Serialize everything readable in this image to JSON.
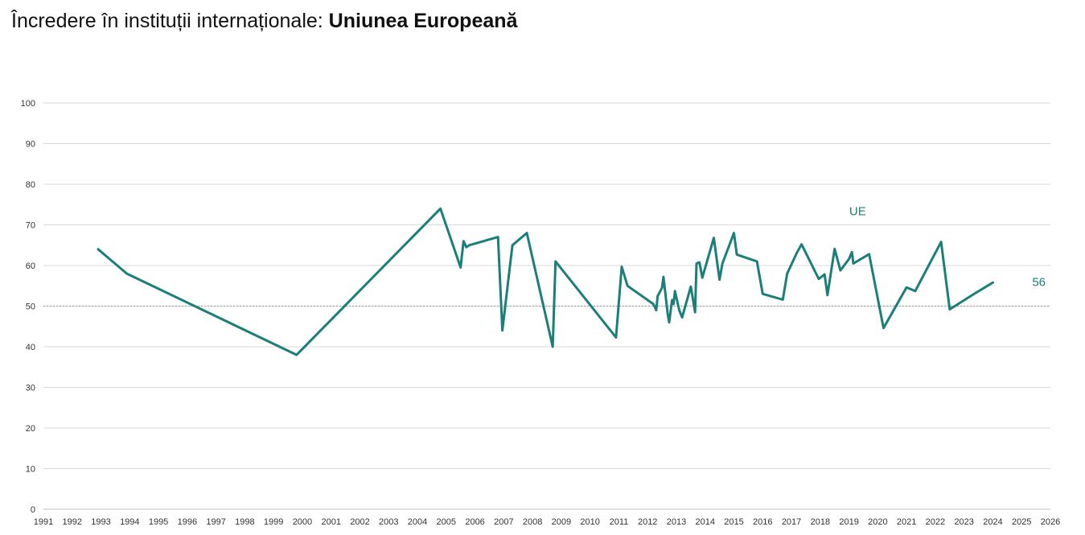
{
  "title_prefix": "Încredere în instituții internaționale: ",
  "title_bold": "Uniunea Europeană",
  "chart_data": {
    "type": "line",
    "title": "Încredere în instituții internaționale: Uniunea Europeană",
    "xlabel": "",
    "ylabel": "",
    "xlim": [
      1991,
      2026
    ],
    "ylim": [
      0,
      100
    ],
    "x_ticks": [
      1991,
      1992,
      1993,
      1994,
      1995,
      1996,
      1997,
      1998,
      1999,
      2000,
      2001,
      2002,
      2003,
      2004,
      2005,
      2006,
      2007,
      2008,
      2009,
      2010,
      2011,
      2012,
      2013,
      2014,
      2015,
      2016,
      2017,
      2018,
      2019,
      2020,
      2021,
      2022,
      2023,
      2024,
      2025,
      2026
    ],
    "y_ticks": [
      0,
      10,
      20,
      30,
      40,
      50,
      60,
      70,
      80,
      90,
      100
    ],
    "grid": true,
    "reference_line": 50,
    "line_color": "#1b7f79",
    "series": [
      {
        "name": "UE",
        "end_label": "56",
        "points": [
          [
            1992.9,
            64
          ],
          [
            1993.9,
            58
          ],
          [
            1999.8,
            38
          ],
          [
            2004.8,
            74
          ],
          [
            2005.5,
            59.5
          ],
          [
            2005.6,
            66
          ],
          [
            2005.7,
            64.5
          ],
          [
            2005.8,
            65
          ],
          [
            2006.8,
            67
          ],
          [
            2006.95,
            44
          ],
          [
            2007.3,
            65
          ],
          [
            2007.8,
            68
          ],
          [
            2008.7,
            40
          ],
          [
            2008.8,
            61
          ],
          [
            2010.9,
            42.3
          ],
          [
            2011.1,
            59.7
          ],
          [
            2011.3,
            55
          ],
          [
            2012.2,
            50.5
          ],
          [
            2012.3,
            49
          ],
          [
            2012.35,
            52.5
          ],
          [
            2012.5,
            54.5
          ],
          [
            2012.55,
            57.2
          ],
          [
            2012.7,
            48
          ],
          [
            2012.75,
            46
          ],
          [
            2012.85,
            51.5
          ],
          [
            2012.9,
            50.5
          ],
          [
            2012.95,
            53.7
          ],
          [
            2013.1,
            49
          ],
          [
            2013.2,
            47.2
          ],
          [
            2013.5,
            54.8
          ],
          [
            2013.65,
            48.5
          ],
          [
            2013.7,
            60.5
          ],
          [
            2013.8,
            60.8
          ],
          [
            2013.9,
            57
          ],
          [
            2014.3,
            66.8
          ],
          [
            2014.5,
            56.5
          ],
          [
            2014.6,
            60.5
          ],
          [
            2015.0,
            68
          ],
          [
            2015.1,
            62.7
          ],
          [
            2015.8,
            61
          ],
          [
            2016.0,
            53
          ],
          [
            2016.7,
            51.6
          ],
          [
            2016.85,
            58
          ],
          [
            2017.0,
            60.3
          ],
          [
            2017.2,
            63.3
          ],
          [
            2017.35,
            65.2
          ],
          [
            2017.95,
            56.7
          ],
          [
            2018.15,
            57.8
          ],
          [
            2018.25,
            52.7
          ],
          [
            2018.5,
            64.1
          ],
          [
            2018.7,
            58.8
          ],
          [
            2019.0,
            61.6
          ],
          [
            2019.1,
            63.3
          ],
          [
            2019.15,
            60.5
          ],
          [
            2019.7,
            62.8
          ],
          [
            2020.2,
            44.6
          ],
          [
            2021.0,
            54.6
          ],
          [
            2021.2,
            54
          ],
          [
            2021.3,
            53.7
          ],
          [
            2022.2,
            65.8
          ],
          [
            2022.5,
            49.2
          ],
          [
            2023.3,
            52.8
          ],
          [
            2024.0,
            55.8
          ]
        ]
      }
    ]
  }
}
